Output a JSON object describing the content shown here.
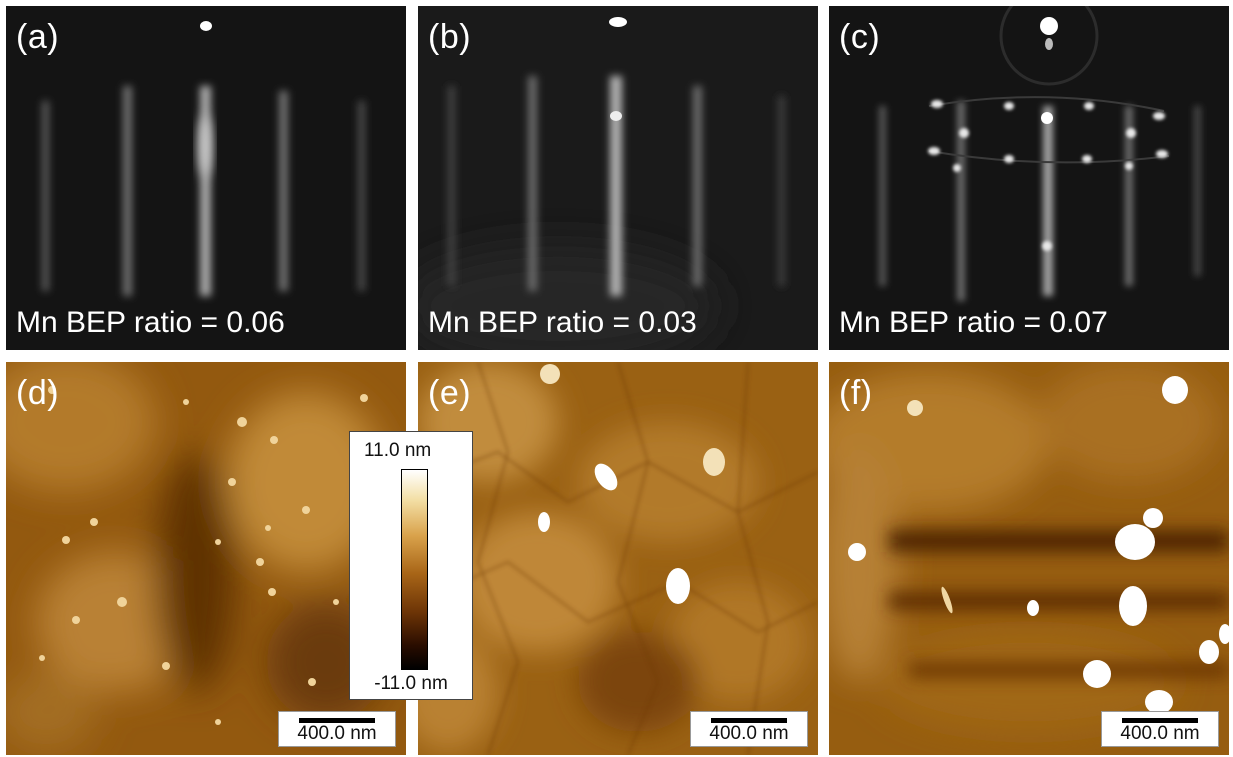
{
  "panels": {
    "a": {
      "label": "(a)",
      "bep": "Mn BEP ratio = 0.06"
    },
    "b": {
      "label": "(b)",
      "bep": "Mn BEP ratio = 0.03"
    },
    "c": {
      "label": "(c)",
      "bep": "Mn BEP ratio = 0.07"
    },
    "d": {
      "label": "(d)",
      "scale": "400.0 nm"
    },
    "e": {
      "label": "(e)",
      "scale": "400.0 nm"
    },
    "f": {
      "label": "(f)",
      "scale": "400.0 nm"
    }
  },
  "colorbar": {
    "max": "11.0 nm",
    "min": "-11.0 nm"
  },
  "colors": {
    "afm_base": "#8a5410",
    "afm_high": "#ffffff",
    "afm_low": "#000000",
    "rheed_bg": "#151515"
  }
}
